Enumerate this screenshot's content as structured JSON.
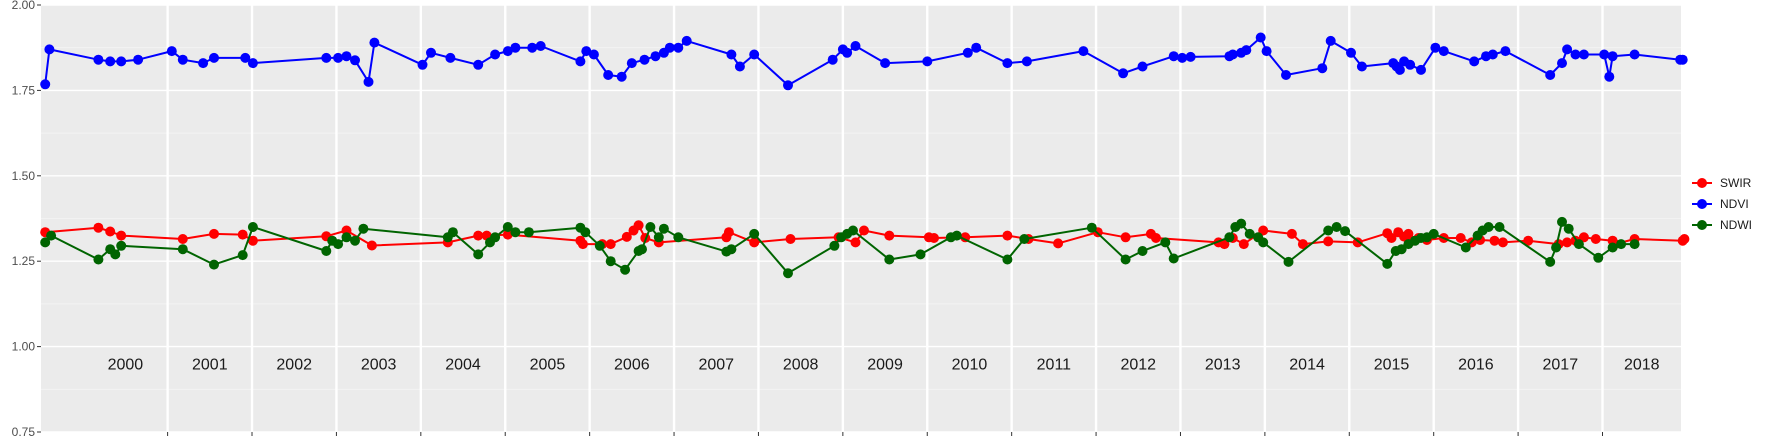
{
  "chart_data": {
    "type": "line",
    "title": "",
    "xlabel": "",
    "ylabel": "",
    "x_unit": "year",
    "xlim": [
      1999.5,
      2018.93
    ],
    "ylim": [
      0.75,
      2.0
    ],
    "y_ticks": [
      0.75,
      1.0,
      1.25,
      1.5,
      1.75,
      2.0
    ],
    "y_tick_labels": [
      "0.75",
      "1.00",
      "1.25",
      "1.50",
      "1.75",
      "2.00"
    ],
    "year_labels": [
      "2000",
      "2001",
      "2002",
      "2003",
      "2004",
      "2005",
      "2006",
      "2007",
      "2008",
      "2009",
      "2010",
      "2011",
      "2012",
      "2013",
      "2014",
      "2015",
      "2016",
      "2017",
      "2018"
    ],
    "grid": true,
    "legend_position": "right",
    "series": [
      {
        "name": "SWIR",
        "color": "#ff0000",
        "x": [
          1999.55,
          2000.18,
          2000.32,
          2000.45,
          2001.18,
          2001.55,
          2001.89,
          2002.01,
          2002.88,
          2003.12,
          2003.42,
          2004.32,
          2004.68,
          2004.78,
          2005.03,
          2005.89,
          2005.92,
          2006.15,
          2006.25,
          2006.44,
          2006.52,
          2006.58,
          2006.66,
          2006.82,
          2007.62,
          2007.65,
          2007.95,
          2008.38,
          2008.95,
          2009.15,
          2009.25,
          2009.55,
          2010.02,
          2010.08,
          2010.45,
          2010.95,
          2011.2,
          2011.55,
          2012.02,
          2012.35,
          2012.65,
          2012.71,
          2013.45,
          2013.52,
          2013.62,
          2013.75,
          2013.98,
          2014.32,
          2014.45,
          2014.75,
          2015.1,
          2015.45,
          2015.5,
          2015.58,
          2015.65,
          2015.7,
          2015.75,
          2015.82,
          2015.92,
          2016.12,
          2016.32,
          2016.45,
          2016.55,
          2016.72,
          2016.82,
          2017.12,
          2017.48,
          2017.58,
          2017.68,
          2017.78,
          2017.92,
          2018.12,
          2018.15,
          2018.38,
          2018.95,
          2018.97
        ],
        "values": [
          1.335,
          1.348,
          1.337,
          1.325,
          1.315,
          1.33,
          1.328,
          1.31,
          1.323,
          1.34,
          1.296,
          1.305,
          1.325,
          1.325,
          1.328,
          1.31,
          1.3,
          1.3,
          1.3,
          1.321,
          1.34,
          1.355,
          1.318,
          1.305,
          1.32,
          1.335,
          1.305,
          1.315,
          1.32,
          1.305,
          1.34,
          1.325,
          1.32,
          1.318,
          1.32,
          1.325,
          1.315,
          1.302,
          1.335,
          1.32,
          1.33,
          1.318,
          1.305,
          1.3,
          1.318,
          1.3,
          1.34,
          1.33,
          1.3,
          1.308,
          1.305,
          1.332,
          1.318,
          1.335,
          1.322,
          1.33,
          1.31,
          1.318,
          1.312,
          1.318,
          1.318,
          1.305,
          1.312,
          1.31,
          1.305,
          1.31,
          1.3,
          1.305,
          1.31,
          1.32,
          1.315,
          1.31,
          1.3,
          1.315,
          1.31,
          1.315
        ]
      },
      {
        "name": "NDVI",
        "color": "#0000ff",
        "x": [
          1999.55,
          1999.6,
          2000.18,
          2000.32,
          2000.45,
          2000.65,
          2001.05,
          2001.18,
          2001.42,
          2001.55,
          2001.92,
          2002.01,
          2002.88,
          2003.02,
          2003.12,
          2003.22,
          2003.38,
          2003.45,
          2004.02,
          2004.12,
          2004.35,
          2004.68,
          2004.88,
          2005.03,
          2005.12,
          2005.32,
          2005.42,
          2005.89,
          2005.96,
          2006.05,
          2006.22,
          2006.38,
          2006.5,
          2006.65,
          2006.78,
          2006.88,
          2006.95,
          2007.05,
          2007.15,
          2007.68,
          2007.78,
          2007.95,
          2008.35,
          2008.88,
          2009.0,
          2009.05,
          2009.15,
          2009.5,
          2010.0,
          2010.48,
          2010.58,
          2010.95,
          2011.18,
          2011.85,
          2012.32,
          2012.55,
          2012.92,
          2013.02,
          2013.12,
          2013.58,
          2013.62,
          2013.72,
          2013.78,
          2013.95,
          2014.02,
          2014.25,
          2014.68,
          2014.78,
          2015.02,
          2015.15,
          2015.52,
          2015.56,
          2015.6,
          2015.65,
          2015.72,
          2015.85,
          2016.02,
          2016.12,
          2016.48,
          2016.62,
          2016.7,
          2016.85,
          2017.38,
          2017.52,
          2017.58,
          2017.68,
          2017.78,
          2018.02,
          2018.08,
          2018.12,
          2018.38,
          2018.92,
          2018.95
        ],
        "values": [
          1.768,
          1.87,
          1.84,
          1.835,
          1.835,
          1.84,
          1.865,
          1.84,
          1.83,
          1.845,
          1.845,
          1.83,
          1.845,
          1.845,
          1.85,
          1.838,
          1.775,
          1.89,
          1.825,
          1.86,
          1.845,
          1.825,
          1.855,
          1.865,
          1.875,
          1.875,
          1.88,
          1.835,
          1.865,
          1.855,
          1.795,
          1.79,
          1.83,
          1.84,
          1.85,
          1.86,
          1.875,
          1.875,
          1.895,
          1.855,
          1.82,
          1.855,
          1.765,
          1.84,
          1.87,
          1.86,
          1.88,
          1.83,
          1.835,
          1.86,
          1.875,
          1.83,
          1.835,
          1.865,
          1.8,
          1.82,
          1.85,
          1.845,
          1.848,
          1.85,
          1.855,
          1.86,
          1.868,
          1.905,
          1.865,
          1.795,
          1.815,
          1.895,
          1.86,
          1.82,
          1.83,
          1.82,
          1.81,
          1.835,
          1.825,
          1.81,
          1.875,
          1.865,
          1.835,
          1.85,
          1.855,
          1.865,
          1.795,
          1.83,
          1.87,
          1.855,
          1.855,
          1.855,
          1.79,
          1.85,
          1.855,
          1.84,
          1.84
        ]
      },
      {
        "name": "NDWI",
        "color": "#006400",
        "x": [
          1999.55,
          1999.62,
          2000.18,
          2000.32,
          2000.38,
          2000.45,
          2001.18,
          2001.55,
          2001.89,
          2002.01,
          2002.88,
          2002.95,
          2003.02,
          2003.12,
          2003.22,
          2003.32,
          2004.32,
          2004.38,
          2004.68,
          2004.82,
          2004.88,
          2005.03,
          2005.12,
          2005.28,
          2005.89,
          2005.95,
          2006.12,
          2006.25,
          2006.42,
          2006.58,
          2006.62,
          2006.72,
          2006.82,
          2006.88,
          2007.05,
          2007.62,
          2007.68,
          2007.95,
          2008.35,
          2008.9,
          2008.98,
          2009.05,
          2009.12,
          2009.55,
          2009.92,
          2010.28,
          2010.35,
          2010.95,
          2011.15,
          2011.95,
          2012.35,
          2012.55,
          2012.82,
          2012.92,
          2013.58,
          2013.65,
          2013.72,
          2013.82,
          2013.92,
          2013.98,
          2014.28,
          2014.75,
          2014.85,
          2014.95,
          2015.45,
          2015.55,
          2015.62,
          2015.7,
          2015.78,
          2015.85,
          2015.92,
          2016.0,
          2016.38,
          2016.52,
          2016.58,
          2016.65,
          2016.78,
          2017.38,
          2017.45,
          2017.52,
          2017.6,
          2017.72,
          2017.95,
          2018.12,
          2018.22,
          2018.38
        ],
        "values": [
          1.305,
          1.325,
          1.255,
          1.285,
          1.27,
          1.295,
          1.285,
          1.24,
          1.268,
          1.35,
          1.28,
          1.31,
          1.3,
          1.32,
          1.31,
          1.345,
          1.32,
          1.335,
          1.27,
          1.305,
          1.32,
          1.35,
          1.335,
          1.335,
          1.348,
          1.335,
          1.295,
          1.25,
          1.225,
          1.28,
          1.285,
          1.35,
          1.32,
          1.345,
          1.32,
          1.278,
          1.285,
          1.33,
          1.215,
          1.295,
          1.32,
          1.33,
          1.34,
          1.255,
          1.27,
          1.32,
          1.325,
          1.255,
          1.315,
          1.348,
          1.255,
          1.28,
          1.305,
          1.258,
          1.32,
          1.35,
          1.36,
          1.33,
          1.32,
          1.305,
          1.248,
          1.34,
          1.35,
          1.338,
          1.242,
          1.28,
          1.285,
          1.3,
          1.31,
          1.318,
          1.32,
          1.33,
          1.29,
          1.325,
          1.34,
          1.35,
          1.35,
          1.248,
          1.29,
          1.365,
          1.345,
          1.3,
          1.26,
          1.29,
          1.3,
          1.3
        ]
      }
    ]
  }
}
